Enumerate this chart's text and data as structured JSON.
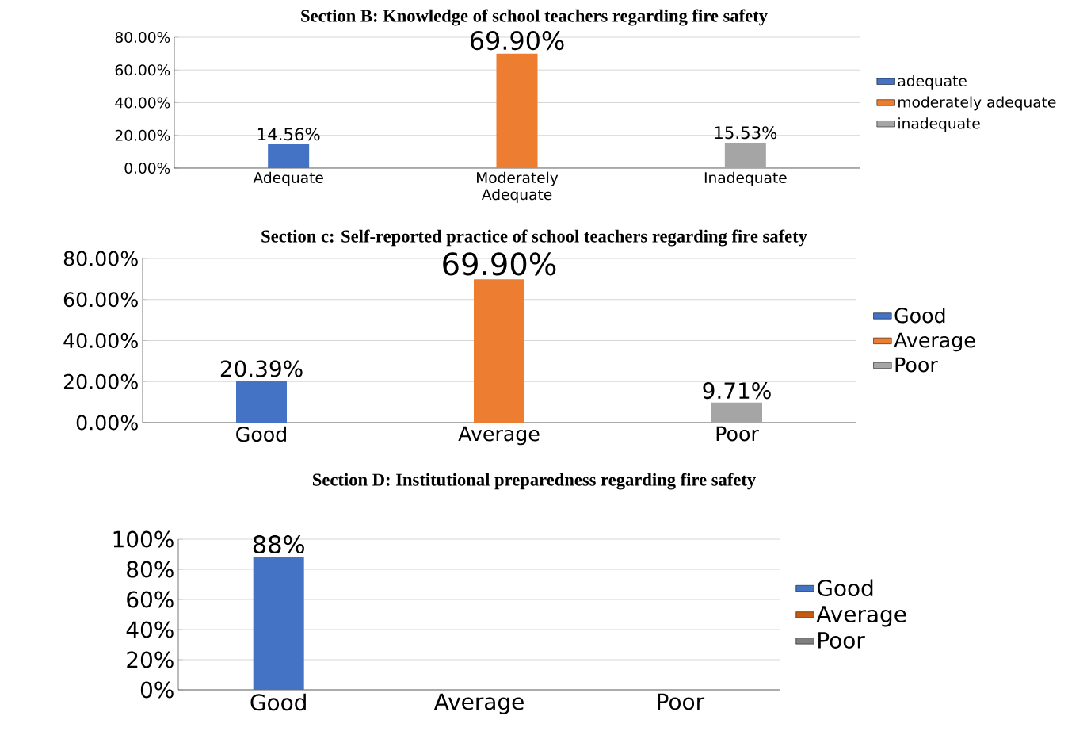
{
  "chart_data": [
    {
      "type": "bar",
      "title": "Section B: Knowledge of school teachers regarding fire safety",
      "categories": [
        "Adequate",
        "Moderately Adequate",
        "Inadequate"
      ],
      "series": [
        {
          "name": "adequate",
          "color": "#4472c4",
          "values": [
            14.56,
            null,
            null
          ],
          "value_labels": [
            "14.56%",
            null,
            null
          ]
        },
        {
          "name": "moderately adequate",
          "color": "#ed7d31",
          "values": [
            null,
            69.9,
            null
          ],
          "value_labels": [
            null,
            "69.90%",
            null
          ]
        },
        {
          "name": "inadequate",
          "color": "#a5a5a5",
          "values": [
            null,
            null,
            15.53
          ],
          "value_labels": [
            null,
            null,
            "15.53%"
          ]
        }
      ],
      "ylim": [
        0,
        80
      ],
      "yticks": [
        {
          "value": 0,
          "label": "0.00%"
        },
        {
          "value": 20,
          "label": "20.00%"
        },
        {
          "value": 40,
          "label": "40.00%"
        },
        {
          "value": 60,
          "label": "60.00%"
        },
        {
          "value": 80,
          "label": "80.00%"
        }
      ],
      "grid": "y",
      "legend": "right"
    },
    {
      "type": "bar",
      "title": "Section c: Self-reported practice of school teachers regarding fire safety",
      "categories": [
        "Good",
        "Average",
        "Poor"
      ],
      "series": [
        {
          "name": "Good",
          "color": "#4472c4",
          "values": [
            20.39,
            null,
            null
          ],
          "value_labels": [
            "20.39%",
            null,
            null
          ]
        },
        {
          "name": "Average",
          "color": "#ed7d31",
          "values": [
            null,
            69.9,
            null
          ],
          "value_labels": [
            null,
            "69.90%",
            null
          ]
        },
        {
          "name": "Poor",
          "color": "#a5a5a5",
          "values": [
            null,
            null,
            9.71
          ],
          "value_labels": [
            null,
            null,
            "9.71%"
          ]
        }
      ],
      "ylim": [
        0,
        80
      ],
      "yticks": [
        {
          "value": 0,
          "label": "0.00%"
        },
        {
          "value": 20,
          "label": "20.00%"
        },
        {
          "value": 40,
          "label": "40.00%"
        },
        {
          "value": 60,
          "label": "60.00%"
        },
        {
          "value": 80,
          "label": "80.00%"
        }
      ],
      "grid": "y",
      "legend": "right"
    },
    {
      "type": "bar",
      "title": "Section D: Institutional preparedness regarding fire safety",
      "categories": [
        "Good",
        "Average",
        "Poor"
      ],
      "series": [
        {
          "name": "Good",
          "color": "#4472c4",
          "values": [
            88,
            null,
            null
          ],
          "value_labels": [
            "88%",
            null,
            null
          ]
        },
        {
          "name": "Average",
          "color": "#c55a11",
          "values": [
            null,
            0,
            null
          ]
        },
        {
          "name": "Poor",
          "color": "#7f7f7f",
          "values": [
            null,
            null,
            0
          ]
        }
      ],
      "ylim": [
        0,
        100
      ],
      "yticks": [
        {
          "value": 0,
          "label": "0%"
        },
        {
          "value": 20,
          "label": "20%"
        },
        {
          "value": 40,
          "label": "40%"
        },
        {
          "value": 60,
          "label": "60%"
        },
        {
          "value": 80,
          "label": "80%"
        },
        {
          "value": 100,
          "label": "100%"
        }
      ],
      "grid": "y",
      "legend": "right"
    }
  ]
}
